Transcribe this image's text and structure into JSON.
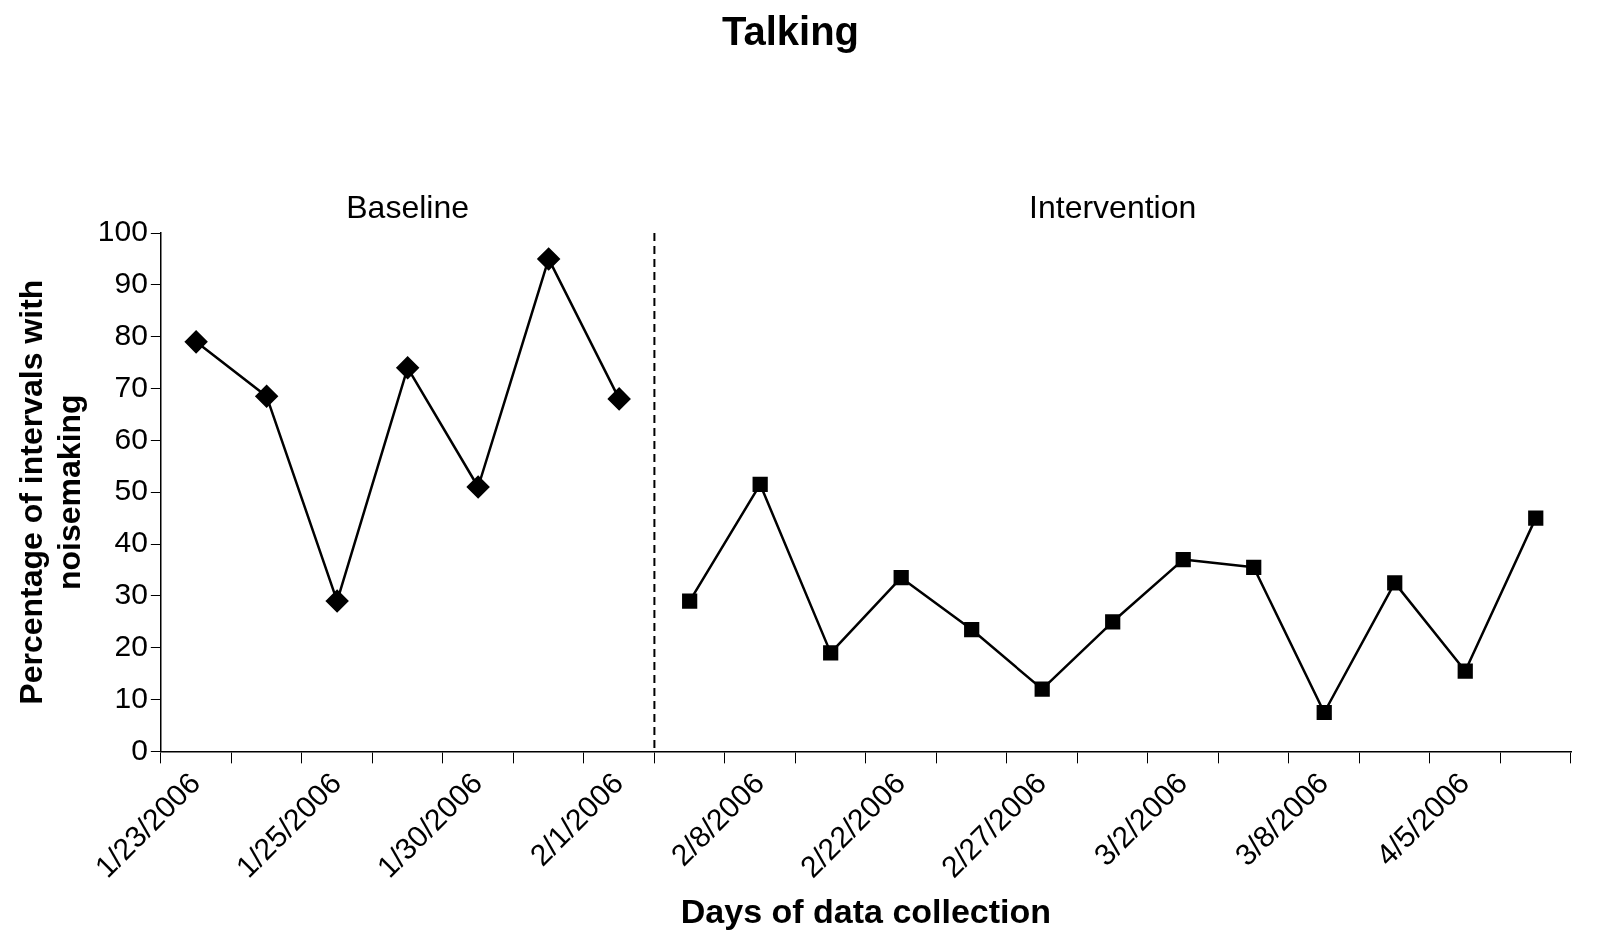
{
  "chart_data": {
    "type": "line",
    "title": "Talking",
    "xlabel": "Days of data collection",
    "ylabel": "Percentage of intervals with noisemaking",
    "categories": [
      "1/23/2006",
      null,
      "1/25/2006",
      null,
      "1/30/2006",
      null,
      "2/1/2006",
      null,
      "2/8/2006",
      null,
      "2/22/2006",
      null,
      "2/27/2006",
      null,
      "3/2/2006",
      null,
      "3/8/2006",
      null,
      "4/5/2006",
      null
    ],
    "series": [
      {
        "color": "#000000",
        "marker": "diamond",
        "values": [
          79,
          68.5,
          29,
          74,
          51,
          95,
          68,
          null,
          null,
          null,
          null,
          null,
          null,
          null,
          null,
          null,
          null,
          null,
          null,
          null
        ]
      },
      {
        "color": "#000000",
        "marker": "square",
        "values": [
          null,
          null,
          null,
          null,
          null,
          null,
          null,
          29,
          51.5,
          19,
          33.5,
          23.5,
          12,
          25,
          37,
          35.5,
          7.5,
          32.5,
          15.5,
          45
        ]
      }
    ],
    "ylim": [
      0,
      100
    ],
    "yticks": [
      0,
      10,
      20,
      30,
      40,
      50,
      60,
      70,
      80,
      90,
      100
    ],
    "grid": false,
    "legend": false,
    "line_style": "solid",
    "annotations": [
      "Baseline",
      "Intervention"
    ]
  }
}
